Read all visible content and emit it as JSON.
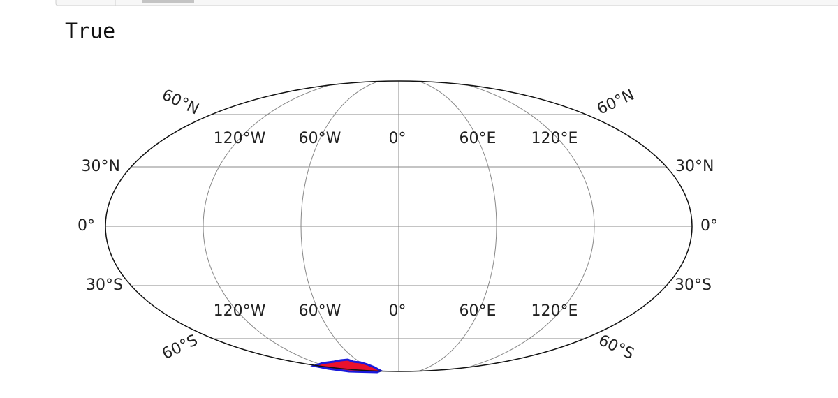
{
  "output": "True",
  "map": {
    "left_labels": [
      "60°N",
      "30°N",
      "0°",
      "30°S",
      "60°S"
    ],
    "right_labels": [
      "60°N",
      "30°N",
      "0°",
      "30°S",
      "60°S"
    ],
    "top_labels": [
      "120°W",
      "60°W",
      "0°",
      "60°E",
      "120°E"
    ],
    "bottom_labels": [
      "120°W",
      "60°W",
      "0°",
      "60°E",
      "120°E"
    ]
  }
}
